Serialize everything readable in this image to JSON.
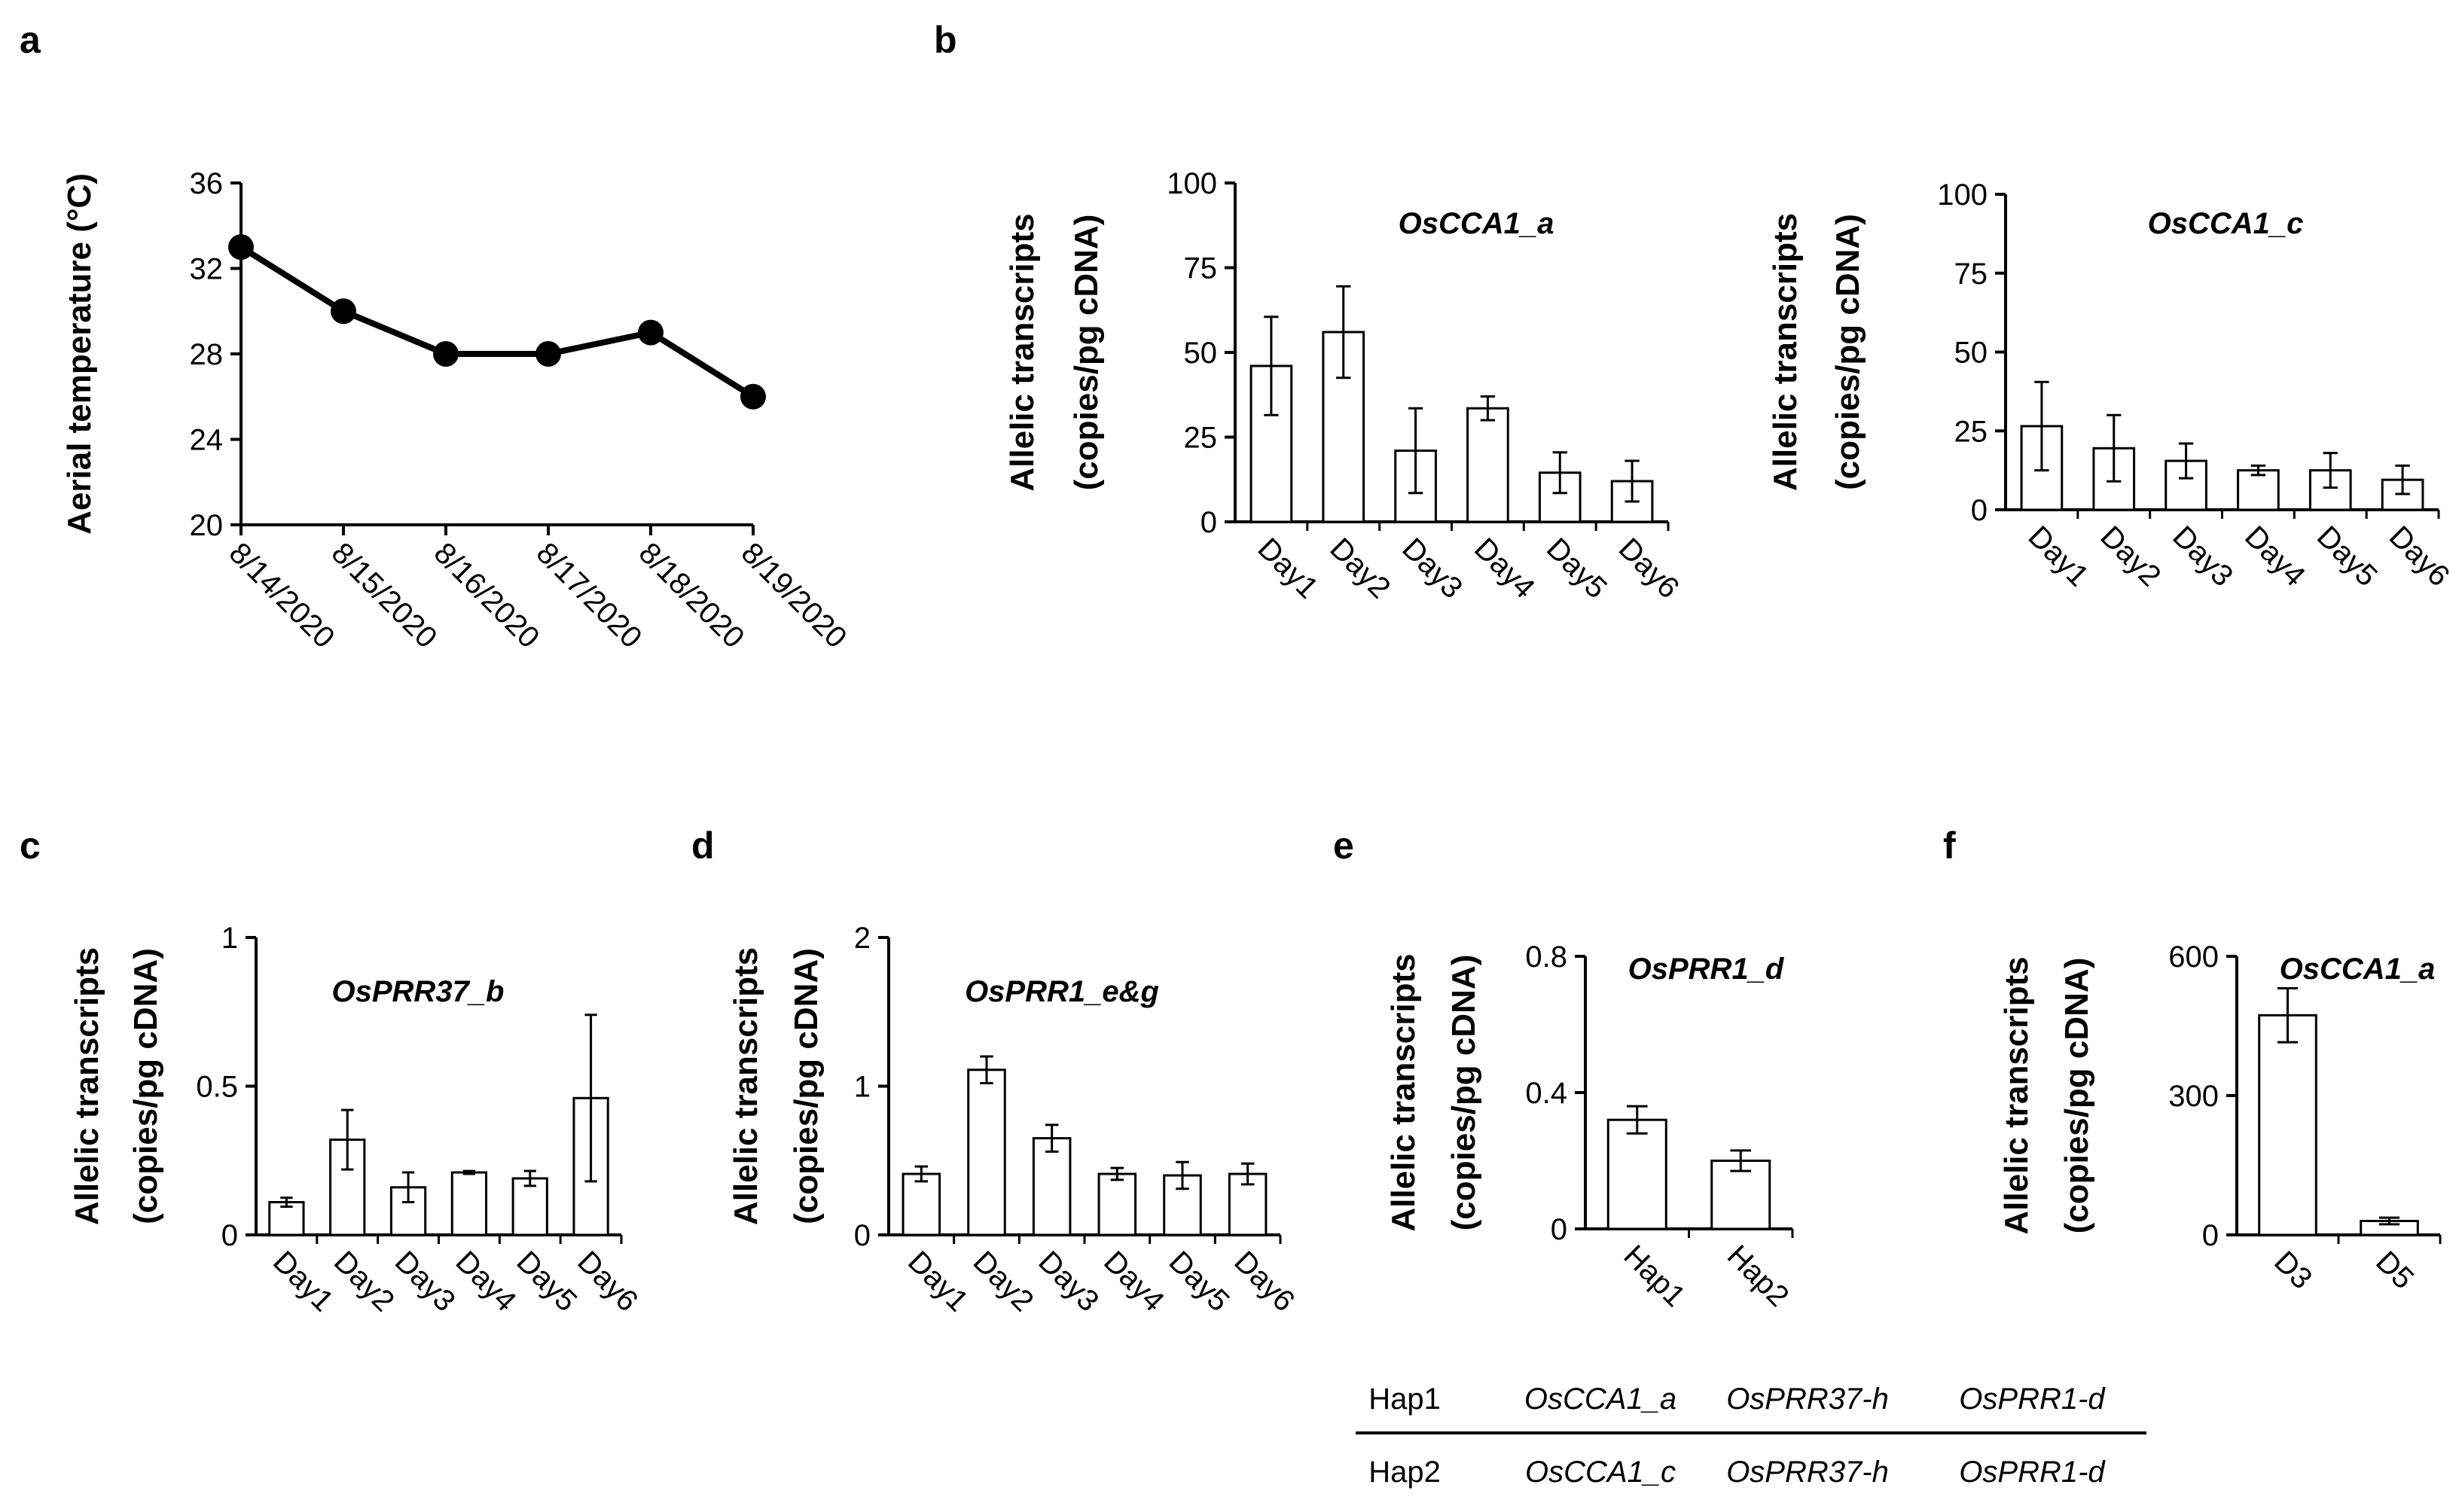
{
  "panel_labels": {
    "a": "a",
    "b": "b",
    "c": "c",
    "d": "d",
    "e": "e",
    "f": "f"
  },
  "ylabel_line1": "Allelic transcripts",
  "ylabel_line2": "(copies/pg cDNA)",
  "colors": {
    "ink": "#000000",
    "bar_fill": "#ffffff",
    "background": "#ffffff"
  },
  "chart_data": [
    {
      "id": "a",
      "type": "line",
      "ylabel": "Aerial temperature (°C)",
      "x": [
        "8/14/2020",
        "8/15/2020",
        "8/16/2020",
        "8/17/2020",
        "8/18/2020",
        "8/19/2020"
      ],
      "series": [
        {
          "values": [
            33,
            30,
            28,
            28,
            29,
            26
          ]
        }
      ],
      "ylim": [
        20,
        36
      ],
      "yticks": [
        "20",
        "24",
        "28",
        "32",
        "36"
      ],
      "grid": false,
      "marker": "filled circle"
    },
    {
      "id": "b1",
      "type": "bar",
      "title": "OsCCA1_a",
      "categories": [
        "Day1",
        "Day2",
        "Day3",
        "Day4",
        "Day5",
        "Day6"
      ],
      "values": [
        46,
        56,
        21,
        33.5,
        14.5,
        12
      ],
      "errors": [
        14.5,
        13.5,
        12.5,
        3.5,
        6,
        6
      ],
      "ylim": [
        0,
        100
      ],
      "yticks": [
        "0",
        "25",
        "50",
        "75",
        "100"
      ],
      "grid": false
    },
    {
      "id": "b2",
      "type": "bar",
      "title": "OsCCA1_c",
      "categories": [
        "Day1",
        "Day2",
        "Day3",
        "Day4",
        "Day5",
        "Day6"
      ],
      "values": [
        26.5,
        19.5,
        15.5,
        12.5,
        12.5,
        9.5
      ],
      "errors": [
        14,
        10.5,
        5.5,
        1.5,
        5.5,
        4.5
      ],
      "ylim": [
        0,
        100
      ],
      "yticks": [
        "0",
        "25",
        "50",
        "75",
        "100"
      ],
      "grid": false
    },
    {
      "id": "c",
      "type": "bar",
      "title": "OsPRR37_b",
      "categories": [
        "Day1",
        "Day2",
        "Day3",
        "Day4",
        "Day5",
        "Day6"
      ],
      "values": [
        0.11,
        0.32,
        0.16,
        0.21,
        0.19,
        0.46
      ],
      "errors": [
        0.015,
        0.1,
        0.05,
        0.005,
        0.025,
        0.28
      ],
      "ylim": [
        0,
        1
      ],
      "yticks": [
        "0",
        "0.5",
        "1"
      ],
      "grid": false
    },
    {
      "id": "d",
      "type": "bar",
      "title": "OsPRR1_e&g",
      "categories": [
        "Day1",
        "Day2",
        "Day3",
        "Day4",
        "Day5",
        "Day6"
      ],
      "values": [
        0.41,
        1.11,
        0.65,
        0.41,
        0.4,
        0.41
      ],
      "errors": [
        0.05,
        0.09,
        0.09,
        0.04,
        0.09,
        0.07
      ],
      "ylim": [
        0,
        2
      ],
      "yticks": [
        "0",
        "1",
        "2"
      ],
      "grid": false
    },
    {
      "id": "e",
      "type": "bar",
      "title": "OsPRR1_d",
      "categories": [
        "Hap1",
        "Hap2"
      ],
      "values": [
        0.32,
        0.2
      ],
      "errors": [
        0.04,
        0.03
      ],
      "ylim": [
        0,
        0.8
      ],
      "yticks": [
        "0",
        "0.4",
        "0.8"
      ],
      "grid": false
    },
    {
      "id": "f",
      "type": "bar",
      "title": "OsCCA1_a",
      "categories": [
        "D3",
        "D5"
      ],
      "values": [
        473,
        30
      ],
      "errors": [
        58,
        7
      ],
      "ylim": [
        0,
        600
      ],
      "yticks": [
        "0",
        "300",
        "600"
      ],
      "grid": false
    },
    {
      "id": "e_table",
      "type": "table",
      "rows": [
        [
          "Hap1",
          "OsCCA1_a",
          "OsPRR37-h",
          "OsPRR1-d"
        ],
        [
          "Hap2",
          "OsCCA1_c",
          "OsPRR37-h",
          "OsPRR1-d"
        ]
      ]
    }
  ]
}
